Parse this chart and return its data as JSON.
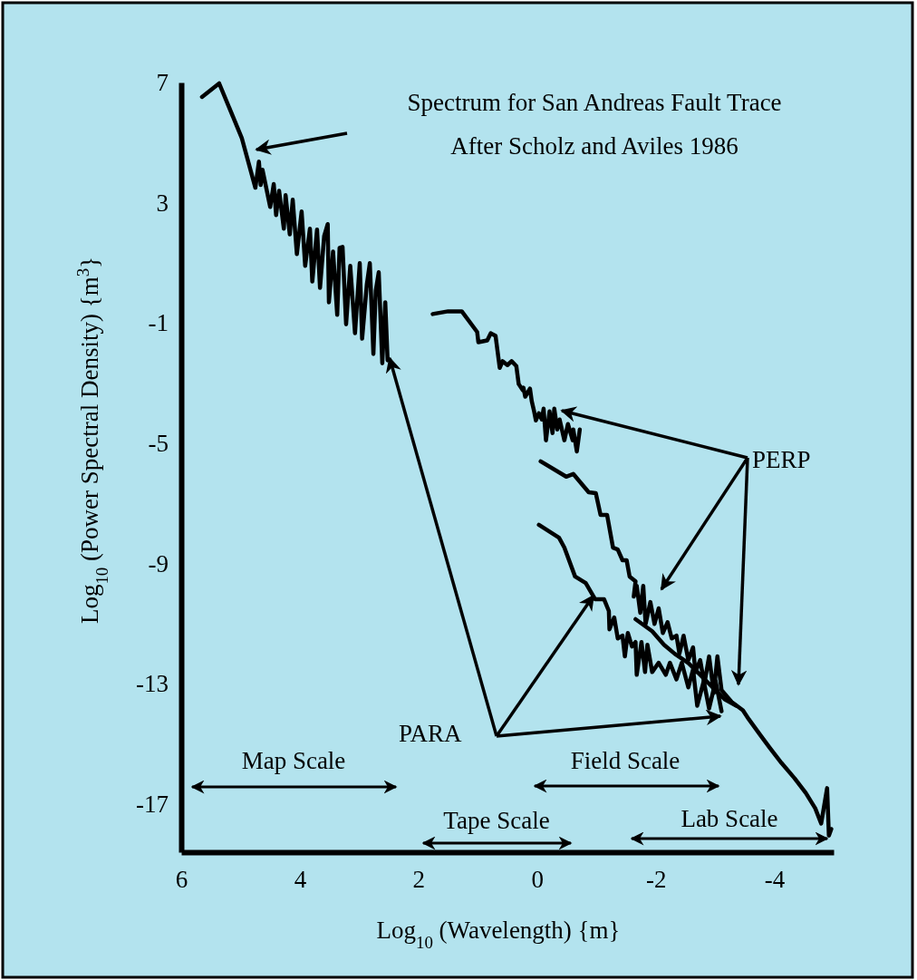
{
  "chart_data": {
    "type": "line",
    "xlabel": "Log$_{10}$ (Wavelength)  {m}",
    "ylabel": "Log$_{10}$ (Power Spectral Density)  {m$^{3}$}",
    "xlim": [
      6,
      -5
    ],
    "ylim": [
      -18.6,
      7
    ],
    "xticks": [
      6,
      4,
      2,
      0,
      -2,
      -4
    ],
    "yticks": [
      7,
      3,
      -1,
      -5,
      -9,
      -13,
      -17
    ],
    "grid": false,
    "marker": "none",
    "line_style": "solid",
    "series": [
      {
        "color": "#000000",
        "x": [
          5.65,
          5.36,
          4.98,
          4.75,
          4.69,
          4.66,
          4.63,
          4.5,
          4.44,
          4.4,
          4.35,
          4.27,
          4.24,
          4.17,
          4.12,
          4.05,
          3.97,
          3.91,
          3.83,
          3.79,
          3.71,
          3.66,
          3.59,
          3.53,
          3.51,
          3.44,
          3.37,
          3.33,
          3.28,
          3.22,
          3.15,
          3.07,
          2.99,
          2.95,
          2.87,
          2.82,
          2.76,
          2.72,
          2.67,
          2.61,
          2.56,
          2.52
        ],
        "values": [
          6.52,
          6.97,
          5.16,
          3.5,
          4.37,
          3.59,
          4.1,
          2.86,
          3.62,
          2.59,
          3.4,
          2.14,
          3.25,
          1.95,
          3.1,
          1.29,
          2.71,
          0.9,
          2.14,
          0.38,
          2.11,
          0.17,
          1.89,
          2.29,
          -0.31,
          1.38,
          -0.73,
          1.5,
          1.53,
          -1.04,
          0.9,
          -1.34,
          0.99,
          -1.52,
          0.29,
          0.99,
          -2.03,
          0.08,
          0.69,
          -2.34,
          -0.31,
          -2.24
        ]
      },
      {
        "color": "#000000",
        "x": [
          1.76,
          1.5,
          1.27,
          1.01,
          0.99,
          0.84,
          0.78,
          0.7,
          0.63,
          0.58,
          0.5,
          0.43,
          0.35,
          0.31,
          0.24,
          0.23,
          0.2,
          0.12,
          0.09,
          0.05,
          0.02,
          -0.03,
          -0.08,
          -0.11,
          -0.15,
          -0.21,
          -0.26,
          -0.29,
          -0.34,
          -0.38,
          -0.46,
          -0.52,
          -0.6,
          -0.61,
          -0.67,
          -0.72
        ],
        "values": [
          -0.7,
          -0.61,
          -0.61,
          -1.3,
          -1.64,
          -1.58,
          -1.34,
          -1.43,
          -2.49,
          -2.27,
          -2.4,
          -2.27,
          -2.43,
          -3.03,
          -3.24,
          -3.15,
          -3.45,
          -3.18,
          -3.6,
          -3.94,
          -4.24,
          -4,
          -4.21,
          -3.85,
          -4.9,
          -3.94,
          -4.66,
          -3.85,
          -4.54,
          -4.21,
          -4.9,
          -4.36,
          -4.9,
          -4.54,
          -5.27,
          -4.54
        ]
      },
      {
        "color": "#000000",
        "x": [
          -0.06,
          -0.49,
          -0.61,
          -0.87,
          -0.99,
          -1.07,
          -1.18,
          -1.28,
          -1.36,
          -1.44,
          -1.51,
          -1.56,
          -1.66,
          -1.63,
          -1.68,
          -1.74,
          -1.79,
          -1.83,
          -1.91,
          -1.98,
          -2.05,
          -2.12,
          -2.2,
          -2.27,
          -2.35,
          -2.4,
          -2.47,
          -2.55,
          -2.63,
          -2.67,
          -2.75,
          -2.82,
          -2.9,
          -2.98,
          -3.04,
          -3.11,
          -3.28,
          -3.47,
          -3.57,
          -3.77,
          -3.92,
          -4.12,
          -4.34,
          -4.53,
          -4.69,
          -4.79,
          -4.89,
          -4.92,
          -4.96
        ],
        "values": [
          -5.6,
          -6.11,
          -6.02,
          -6.63,
          -6.66,
          -7.38,
          -7.38,
          -8.47,
          -8.53,
          -8.89,
          -8.89,
          -9.43,
          -9.59,
          -10.1,
          -9.74,
          -10.64,
          -9.74,
          -11.01,
          -10.28,
          -11.01,
          -10.49,
          -11.31,
          -10.95,
          -11.49,
          -11.4,
          -12,
          -11.4,
          -12.21,
          -11.79,
          -12.61,
          -12.21,
          -13,
          -12.09,
          -13.3,
          -12.09,
          -13.21,
          -13.6,
          -13.88,
          -14.18,
          -14.72,
          -15.12,
          -15.63,
          -16.14,
          -16.63,
          -17.14,
          -17.65,
          -16.47,
          -18.05,
          -17.83
        ]
      },
      {
        "color": "#000000",
        "x": [
          -0.03,
          -0.37,
          -0.46,
          -0.64,
          -0.82,
          -0.98,
          -1.13,
          -1.21,
          -1.22,
          -1.3,
          -1.36,
          -1.44,
          -1.48,
          -1.53,
          -1.6,
          -1.66,
          -1.68,
          -1.76,
          -1.82,
          -1.86,
          -1.94,
          -2.05,
          -2.17,
          -2.24,
          -2.35,
          -2.44,
          -2.55,
          -2.63,
          -2.7,
          -2.81,
          -2.9,
          -3.01,
          -3.11
        ],
        "values": [
          -7.71,
          -8.14,
          -8.47,
          -9.43,
          -9.65,
          -10.19,
          -10.19,
          -10.58,
          -11.19,
          -10.79,
          -11.49,
          -11.4,
          -12.09,
          -11.31,
          -11.76,
          -11.61,
          -12.7,
          -11.61,
          -12.61,
          -11.7,
          -12.61,
          -12.3,
          -12.7,
          -12.3,
          -12.85,
          -12.3,
          -13.12,
          -12.52,
          -13.73,
          -12.91,
          -13.82,
          -12.91,
          -13.91
        ]
      },
      {
        "color": "#000000",
        "x": [
          -1.66,
          -1.94,
          -2.14,
          -2.32,
          -2.55,
          -2.75,
          -2.96,
          -3.16,
          -3.36
        ],
        "values": [
          -10.85,
          -11.25,
          -11.7,
          -12,
          -12.31,
          -12.7,
          -13.12,
          -13.51,
          -13.73
        ]
      }
    ],
    "annotations": [
      "Spectrum for San Andreas Fault Trace\nAfter Scholz and Aviles 1986",
      "PERP",
      "PARA",
      "Map Scale",
      "Tape Scale",
      "Field Scale",
      "Lab Scale"
    ]
  }
}
